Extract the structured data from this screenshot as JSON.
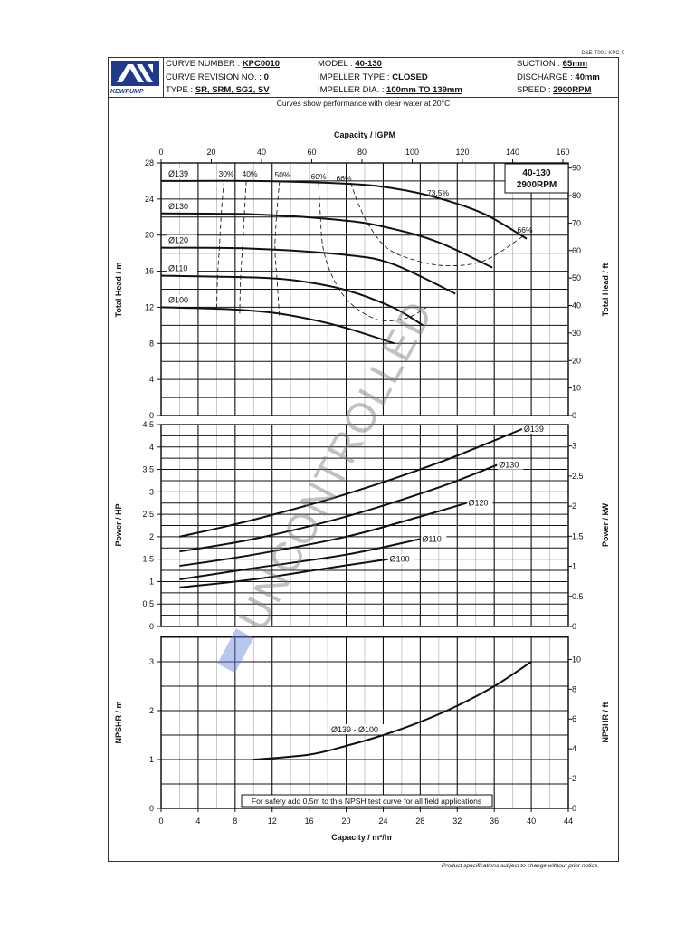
{
  "doc_id": "D&E-T001-KPC-0",
  "header": {
    "brand": "KEWPUMP",
    "curve_number_label": "CURVE NUMBER : ",
    "curve_number": "KPC0010",
    "revision_label": "CURVE REVISION NO. : ",
    "revision": "0",
    "type_label": "TYPE : ",
    "type": "SR, SRM, SG2, SV",
    "model_label": "MODEL : ",
    "model": "40-130",
    "impeller_type_label": "IMPELLER TYPE : ",
    "impeller_type": "CLOSED",
    "impeller_dia_label": "IMPELLER DIA. : ",
    "impeller_dia": "100mm TO 139mm",
    "suction_label": "SUCTION : ",
    "suction": "65mm",
    "discharge_label": "DISCHARGE : ",
    "discharge": "40mm",
    "speed_label": "SPEED : ",
    "speed": "2900RPM"
  },
  "note": "Curves show performance with clear water at 20°C",
  "footer": "Product specifications subject to change without prior notice.",
  "watermark": "UNCONTROLLED",
  "chart_data": [
    {
      "type": "line",
      "title": "40-130 2900RPM",
      "title_lines": [
        "40-130",
        "2900RPM"
      ],
      "xlabel_top": "Capacity / IGPM",
      "x_top_ticks": [
        0,
        20,
        40,
        60,
        80,
        100,
        120,
        140,
        160
      ],
      "x_unit": "m3/hr",
      "xlim": [
        0,
        44
      ],
      "ylabel": "Total Head / m",
      "ylabel_right": "Total Head / ft",
      "ylim": [
        0,
        28
      ],
      "y_ticks": [
        0,
        4,
        8,
        12,
        16,
        20,
        24,
        28
      ],
      "y_right_ticks": [
        0,
        10,
        20,
        30,
        40,
        50,
        60,
        70,
        80,
        90
      ],
      "grid": true,
      "series": [
        {
          "name": "Ø139",
          "x": [
            0,
            10,
            20,
            25,
            30,
            35,
            39.5
          ],
          "y": [
            26.0,
            26.0,
            25.7,
            25.2,
            24.1,
            22.3,
            19.6
          ]
        },
        {
          "name": "Ø130",
          "x": [
            0,
            10,
            20,
            25,
            30,
            35.8
          ],
          "y": [
            22.4,
            22.3,
            21.6,
            20.7,
            19.2,
            16.4
          ]
        },
        {
          "name": "Ø120",
          "x": [
            0,
            10,
            20,
            25,
            31.8
          ],
          "y": [
            18.6,
            18.5,
            17.8,
            16.8,
            13.5
          ]
        },
        {
          "name": "Ø110",
          "x": [
            0,
            10,
            15,
            20,
            25,
            28.3
          ],
          "y": [
            15.5,
            15.3,
            14.9,
            13.9,
            12.0,
            10.0
          ]
        },
        {
          "name": "Ø100",
          "x": [
            0,
            7,
            12,
            16,
            20,
            25.2
          ],
          "y": [
            12.0,
            11.8,
            11.4,
            10.7,
            9.7,
            8.0
          ]
        }
      ],
      "efficiency_labels": [
        "30%",
        "40%",
        "50%",
        "60%",
        "66%",
        "73.5%",
        "66%"
      ],
      "efficiency_curves": [
        {
          "name": "30%",
          "x": [
            6.8,
            6.5,
            6.3,
            6.1,
            6.0
          ],
          "y": [
            26.0,
            22.4,
            18.6,
            15.5,
            11.6
          ]
        },
        {
          "name": "40%",
          "x": [
            9.2,
            9.0,
            8.8,
            8.6,
            8.5
          ],
          "y": [
            26.0,
            22.4,
            18.6,
            15.5,
            11.3
          ]
        },
        {
          "name": "50%",
          "x": [
            12.8,
            12.5,
            12.3,
            12.5,
            12.8
          ],
          "y": [
            26.0,
            22.4,
            18.6,
            15.5,
            10.8
          ]
        },
        {
          "name": "60%",
          "x": [
            17.0,
            17.2,
            17.5,
            18.6,
            20.5,
            23.5,
            26.5,
            28.7
          ],
          "y": [
            26.0,
            22.4,
            18.6,
            15.2,
            12.4,
            10.6,
            10.8,
            12.0
          ]
        },
        {
          "name": "66%",
          "x": [
            20.5,
            21.3,
            22.5,
            24.5,
            27.5,
            31,
            35,
            39
          ],
          "y": [
            25.8,
            23.5,
            21.0,
            18.5,
            17.2,
            16.6,
            17.2,
            19.8
          ]
        }
      ],
      "bep_label": "73.5%"
    },
    {
      "type": "line",
      "xlim": [
        0,
        44
      ],
      "ylabel": "Power / HP",
      "ylabel_right": "Power / kW",
      "ylim": [
        0,
        4.5
      ],
      "y_ticks": [
        0,
        0.5,
        1,
        1.5,
        2,
        2.5,
        3,
        3.5,
        4,
        4.5
      ],
      "y_right_ticks": [
        0,
        0.5,
        1,
        1.5,
        2,
        2.5,
        3
      ],
      "grid": true,
      "series": [
        {
          "name": "Ø139",
          "x": [
            2,
            10,
            20,
            30,
            39
          ],
          "y": [
            2.0,
            2.38,
            2.95,
            3.65,
            4.4
          ]
        },
        {
          "name": "Ø130",
          "x": [
            2,
            10,
            20,
            30,
            36.3
          ],
          "y": [
            1.67,
            1.95,
            2.45,
            3.1,
            3.6
          ]
        },
        {
          "name": "Ø120",
          "x": [
            2,
            10,
            20,
            28,
            33
          ],
          "y": [
            1.35,
            1.6,
            2.0,
            2.45,
            2.75
          ]
        },
        {
          "name": "Ø110",
          "x": [
            2,
            10,
            20,
            28
          ],
          "y": [
            1.05,
            1.3,
            1.6,
            1.95
          ]
        },
        {
          "name": "Ø100",
          "x": [
            2,
            10,
            18,
            24.5
          ],
          "y": [
            0.87,
            1.05,
            1.3,
            1.5
          ]
        }
      ]
    },
    {
      "type": "line",
      "xlabel": "Capacity / m³/hr",
      "x_ticks": [
        0,
        4,
        8,
        12,
        16,
        20,
        24,
        28,
        32,
        36,
        40,
        44
      ],
      "xlim": [
        0,
        44
      ],
      "ylabel": "NPSHR / m",
      "ylabel_right": "NPSHR / ft",
      "ylim": [
        0,
        3.5
      ],
      "y_ticks": [
        0,
        1,
        2,
        3
      ],
      "y_right_ticks": [
        0,
        2,
        4,
        6,
        8,
        10
      ],
      "grid": true,
      "series": [
        {
          "name": "Ø139 - Ø100",
          "x": [
            10,
            16,
            20,
            24,
            28,
            32,
            36,
            40
          ],
          "y": [
            1.0,
            1.1,
            1.28,
            1.5,
            1.77,
            2.1,
            2.5,
            3.0
          ]
        }
      ],
      "annotation": "For safety add 0.5m to this NPSH test curve for all field applications"
    }
  ]
}
